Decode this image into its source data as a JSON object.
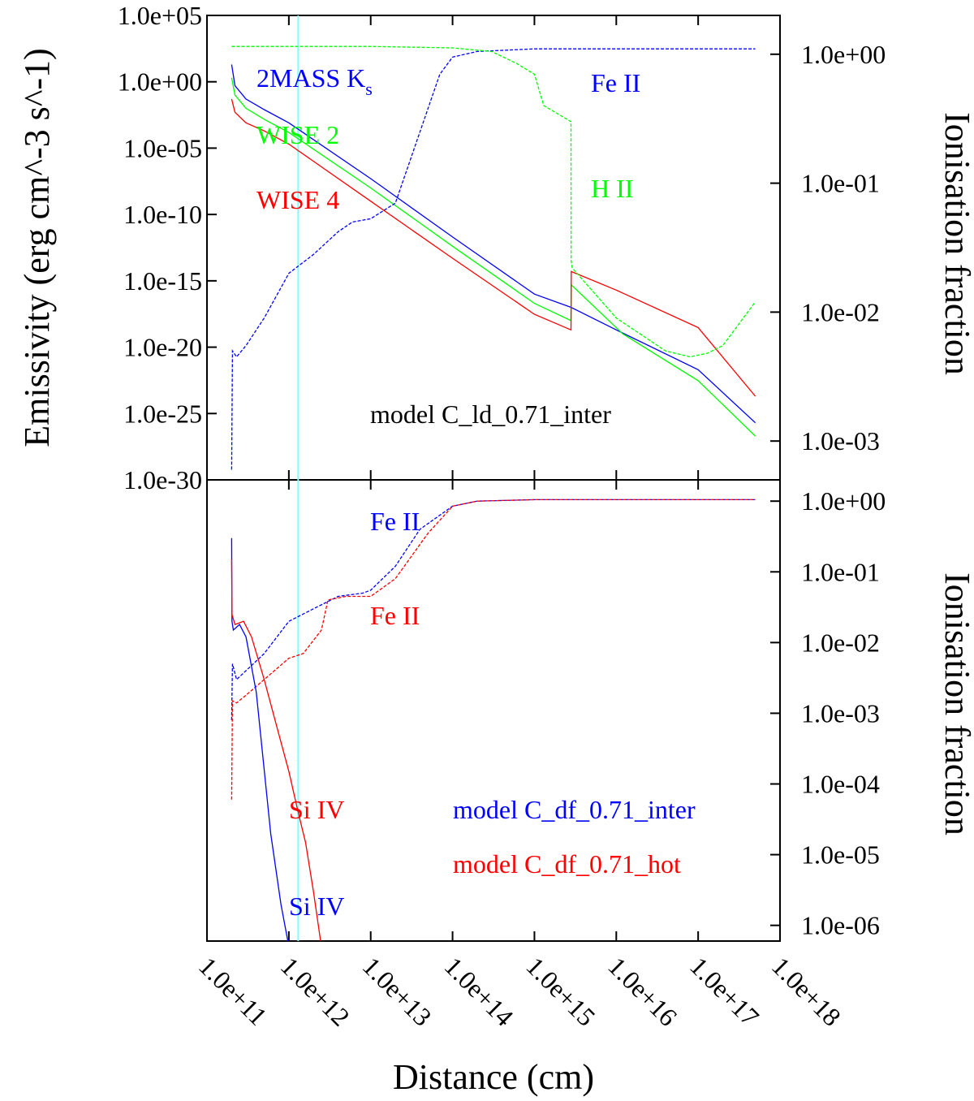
{
  "chart_data": [
    {
      "type": "line",
      "title": "",
      "xlabel": "Distance (cm)",
      "ylabel_left": "Emissivity (erg cm^-3 s^-1)",
      "ylabel_right": "Ionisation fraction",
      "x_scale": "log",
      "xlim": [
        100000000000.0,
        1e+18
      ],
      "ylim_left": [
        1e-30,
        100000.0
      ],
      "ylim_right": [
        0.0005,
        2.0
      ],
      "left_tick_labels": [
        "1.0e-30",
        "1.0e-25",
        "1.0e-20",
        "1.0e-15",
        "1.0e-10",
        "1.0e-05",
        "1.0e+00",
        "1.0e+05"
      ],
      "right_tick_labels": [
        "1.0e-03",
        "1.0e-02",
        "1.0e-01",
        "1.0e+00"
      ],
      "annotation": "model C_ld_0.71_inter",
      "vertical_line_x": 1300000000000.0,
      "series": [
        {
          "name": "2MASS Ks",
          "axis": "left",
          "style": "solid",
          "color": "#0000ff",
          "x": [
            200000000000.0,
            220000000000.0,
            300000000000.0,
            500000000000.0,
            1000000000000.0,
            10000000000000.0,
            100000000000000.0,
            1000000000000000.0,
            2800000000000000.0,
            1e+16,
            1e+17,
            5e+17
          ],
          "y": [
            20,
            0.5,
            0.05,
            0.008,
            0.0008,
            5e-08,
            2e-12,
            1e-16,
            1e-17,
            2e-19,
            2e-22,
            2e-26
          ]
        },
        {
          "name": "WISE 2",
          "axis": "left",
          "style": "solid",
          "color": "#00ff00",
          "x": [
            200000000000.0,
            220000000000.0,
            300000000000.0,
            500000000000.0,
            1000000000000.0,
            10000000000000.0,
            100000000000000.0,
            1000000000000000.0,
            2800000000000000.0,
            2820000000000000.0,
            1.2e+16,
            1e+17,
            5e+17
          ],
          "y": [
            2,
            0.1,
            0.01,
            0.0015,
            0.00015,
            1e-08,
            4e-13,
            2e-17,
            1e-18,
            5e-16,
            1e-19,
            3e-23,
            2e-27
          ]
        },
        {
          "name": "WISE 4",
          "axis": "left",
          "style": "solid",
          "color": "#ff0000",
          "x": [
            200000000000.0,
            220000000000.0,
            300000000000.0,
            500000000000.0,
            1000000000000.0,
            10000000000000.0,
            100000000000000.0,
            1000000000000000.0,
            2800000000000000.0,
            2820000000000000.0,
            1e+16,
            1e+17,
            5e+17
          ],
          "y": [
            0.05,
            0.005,
            0.0008,
            0.0002,
            2e-05,
            1e-09,
            5e-14,
            3e-18,
            2e-19,
            5e-15,
            2e-16,
            3e-19,
            2e-24
          ]
        },
        {
          "name": "Fe II",
          "axis": "right",
          "style": "dashed",
          "color": "#0000ff",
          "x": [
            200000000000.0,
            205000000000.0,
            230000000000.0,
            300000000000.0,
            500000000000.0,
            1000000000000.0,
            2000000000000.0,
            4000000000000.0,
            6000000000000.0,
            10000000000000.0,
            20000000000000.0,
            40000000000000.0,
            70000000000000.0,
            100000000000000.0,
            200000000000000.0,
            1000000000000000.0,
            1e+16,
            1e+17,
            5e+17
          ],
          "y": [
            0.0006,
            0.005,
            0.0045,
            0.0055,
            0.009,
            0.02,
            0.028,
            0.042,
            0.05,
            0.053,
            0.07,
            0.25,
            0.7,
            0.95,
            1.05,
            1.1,
            1.1,
            1.1,
            1.1
          ]
        },
        {
          "name": "H II",
          "axis": "right",
          "style": "dashed",
          "color": "#00ff00",
          "x": [
            200000000000.0,
            1000000000000.0,
            10000000000000.0,
            100000000000000.0,
            300000000000000.0,
            600000000000000.0,
            1000000000000000.0,
            1300000000000000.0,
            2800000000000000.0,
            2810000000000000.0,
            2900000000000000.0,
            1e+16,
            4e+16,
            8e+16,
            1.3e+17,
            2e+17,
            5e+17
          ],
          "y": [
            1.15,
            1.15,
            1.15,
            1.12,
            1.05,
            0.85,
            0.7,
            0.4,
            0.3,
            0.025,
            0.022,
            0.009,
            0.005,
            0.0045,
            0.0048,
            0.0055,
            0.012
          ]
        }
      ],
      "series_labels": [
        "2MASS K",
        "s",
        "WISE 2",
        "WISE 4",
        "Fe II",
        "H II"
      ]
    },
    {
      "type": "line",
      "xlabel": "Distance (cm)",
      "ylabel_right": "Ionisation fraction",
      "x_scale": "log",
      "xlim": [
        100000000000.0,
        1e+18
      ],
      "ylim_right": [
        6e-07,
        2.0
      ],
      "x_tick_labels": [
        "1.0e+11",
        "1.0e+12",
        "1.0e+13",
        "1.0e+14",
        "1.0e+15",
        "1.0e+16",
        "1.0e+17",
        "1.0e+18"
      ],
      "right_tick_labels": [
        "1.0e-06",
        "1.0e-05",
        "1.0e-04",
        "1.0e-03",
        "1.0e-02",
        "1.0e-01",
        "1.0e+00"
      ],
      "annotations": [
        "model C_df_0.71_inter",
        "model C_df_0.71_hot"
      ],
      "series": [
        {
          "name": "Fe II (inter)",
          "style": "dashed",
          "color": "#0000ff",
          "x": [
            200000000000.0,
            205000000000.0,
            230000000000.0,
            300000000000.0,
            500000000000.0,
            1000000000000.0,
            2000000000000.0,
            4000000000000.0,
            8000000000000.0,
            10000000000000.0,
            20000000000000.0,
            40000000000000.0,
            100000000000000.0,
            200000000000000.0,
            1000000000000000.0,
            1e+16,
            5e+17
          ],
          "y": [
            0.0008,
            0.005,
            0.003,
            0.004,
            0.007,
            0.02,
            0.03,
            0.045,
            0.05,
            0.055,
            0.12,
            0.4,
            0.85,
            1.0,
            1.05,
            1.05,
            1.05
          ]
        },
        {
          "name": "Fe II (hot)",
          "style": "dashed",
          "color": "#ff0000",
          "x": [
            200000000000.0,
            205000000000.0,
            230000000000.0,
            300000000000.0,
            500000000000.0,
            1000000000000.0,
            1500000000000.0,
            2500000000000.0,
            3000000000000.0,
            5000000000000.0,
            10000000000000.0,
            20000000000000.0,
            50000000000000.0,
            100000000000000.0,
            200000000000000.0,
            1000000000000000.0,
            1e+16,
            5e+17
          ],
          "y": [
            6e-05,
            0.0015,
            0.0014,
            0.0018,
            0.003,
            0.006,
            0.007,
            0.015,
            0.04,
            0.045,
            0.045,
            0.08,
            0.35,
            0.85,
            1.0,
            1.05,
            1.05,
            1.05
          ]
        },
        {
          "name": "Si IV (inter)",
          "style": "solid",
          "color": "#0000ff",
          "x": [
            200000000000.0,
            202000000000.0,
            210000000000.0,
            250000000000.0,
            300000000000.0,
            400000000000.0,
            600000000000.0,
            800000000000.0,
            1000000000000.0
          ],
          "y": [
            0.3,
            0.02,
            0.015,
            0.018,
            0.012,
            0.002,
            2e-05,
            2e-06,
            5e-07
          ]
        },
        {
          "name": "Si IV (hot)",
          "style": "solid",
          "color": "#ff0000",
          "x": [
            200000000000.0,
            202000000000.0,
            220000000000.0,
            280000000000.0,
            350000000000.0,
            500000000000.0,
            700000000000.0,
            1000000000000.0,
            1300000000000.0,
            1600000000000.0,
            2000000000000.0,
            2500000000000.0
          ],
          "y": [
            0.15,
            0.025,
            0.018,
            0.02,
            0.012,
            0.003,
            0.0007,
            0.00015,
            4e-05,
            1.5e-05,
            3e-06,
            5e-07
          ]
        }
      ],
      "series_labels": [
        "Fe II",
        "Fe II",
        "Si IV",
        "Si IV"
      ]
    }
  ]
}
